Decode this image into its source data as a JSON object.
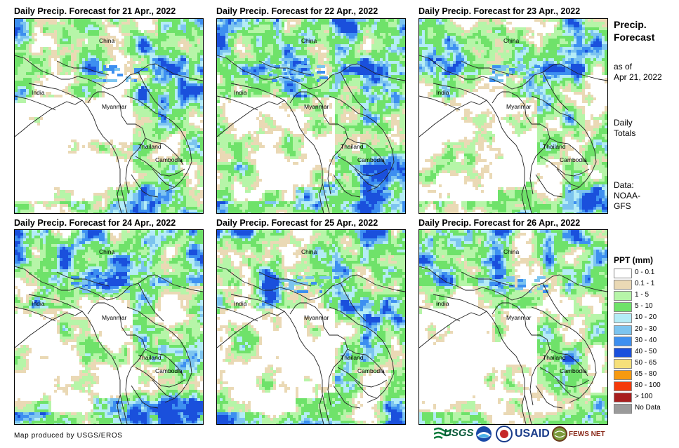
{
  "panels": [
    {
      "title": "Daily Precip. Forecast for 21 Apr., 2022"
    },
    {
      "title": "Daily Precip. Forecast for 22 Apr., 2022"
    },
    {
      "title": "Daily Precip. Forecast for 23 Apr., 2022"
    },
    {
      "title": "Daily Precip. Forecast for 24 Apr., 2022"
    },
    {
      "title": "Daily Precip. Forecast for 25 Apr., 2022"
    },
    {
      "title": "Daily Precip. Forecast for 26 Apr., 2022"
    }
  ],
  "countries": {
    "china": "China",
    "india": "India",
    "myanmar": "Myanmar",
    "thailand": "Thailand",
    "cambodia": "Cambodia"
  },
  "side": {
    "title_line1": "Precip.",
    "title_line2": "Forecast",
    "asof_line1": "as of",
    "asof_line2": "Apr 21, 2022",
    "daily_line1": "Daily",
    "daily_line2": "Totals",
    "data_line1": "Data:",
    "data_line2": "NOAA-",
    "data_line3": "GFS"
  },
  "legend": {
    "title": "PPT (mm)",
    "items": [
      {
        "label": "0 - 0.1",
        "color": "#ffffff"
      },
      {
        "label": "0.1 - 1",
        "color": "#ead9b5"
      },
      {
        "label": "1 - 5",
        "color": "#b6f5a8"
      },
      {
        "label": "5 - 10",
        "color": "#6fe26a"
      },
      {
        "label": "10 - 20",
        "color": "#b4ecf6"
      },
      {
        "label": "20 - 30",
        "color": "#7cc4ef"
      },
      {
        "label": "30 - 40",
        "color": "#3d8ff0"
      },
      {
        "label": "40 - 50",
        "color": "#1a50dc"
      },
      {
        "label": "50 - 65",
        "color": "#f6e07a"
      },
      {
        "label": "65 - 80",
        "color": "#f79a10"
      },
      {
        "label": "80 - 100",
        "color": "#f43a0a"
      },
      {
        "label": "> 100",
        "color": "#a81e1e"
      },
      {
        "label": "No Data",
        "color": "#9a9a9a"
      }
    ]
  },
  "footer": {
    "credit": "Map produced by USGS/EROS"
  },
  "logos": {
    "usgs": "USGS",
    "usaid": "USAID",
    "fewsnet": "FEWS NET"
  }
}
